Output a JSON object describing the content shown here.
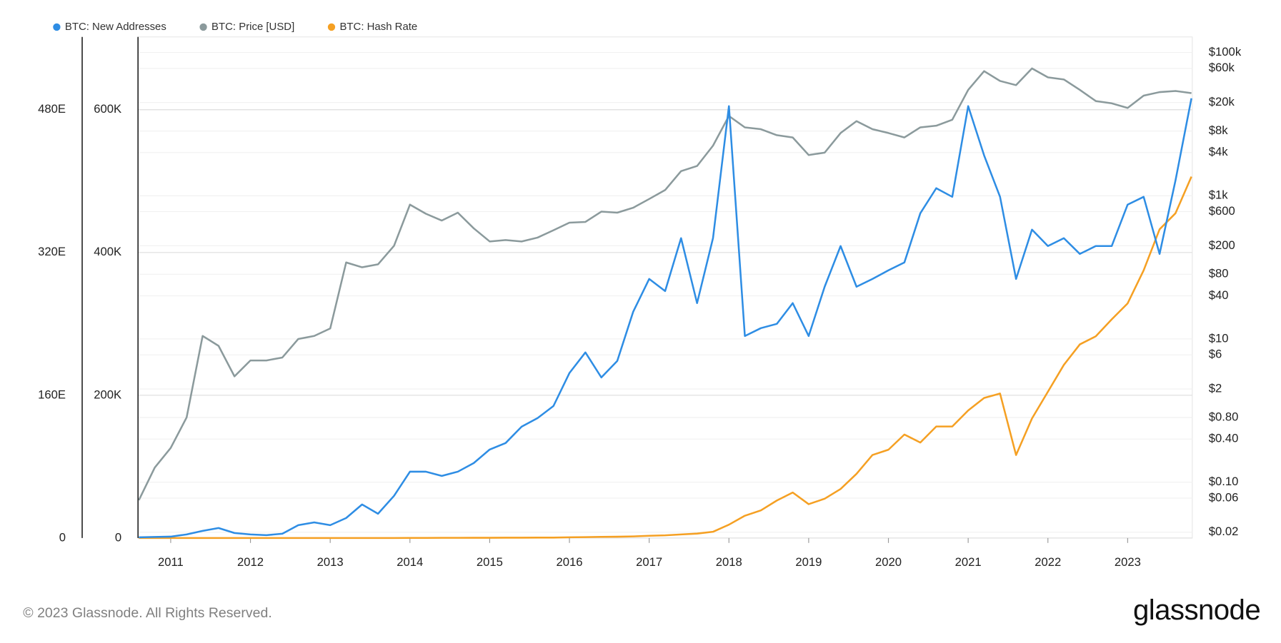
{
  "chart_data": {
    "type": "line",
    "x": [
      2010.6,
      2010.8,
      2011.0,
      2011.2,
      2011.4,
      2011.6,
      2011.8,
      2012.0,
      2012.2,
      2012.4,
      2012.6,
      2012.8,
      2013.0,
      2013.2,
      2013.4,
      2013.6,
      2013.8,
      2014.0,
      2014.2,
      2014.4,
      2014.6,
      2014.8,
      2015.0,
      2015.2,
      2015.4,
      2015.6,
      2015.8,
      2016.0,
      2016.2,
      2016.4,
      2016.6,
      2016.8,
      2017.0,
      2017.2,
      2017.4,
      2017.6,
      2017.8,
      2018.0,
      2018.2,
      2018.4,
      2018.6,
      2018.8,
      2019.0,
      2019.2,
      2019.4,
      2019.6,
      2019.8,
      2020.0,
      2020.2,
      2020.4,
      2020.6,
      2020.8,
      2021.0,
      2021.2,
      2021.4,
      2021.6,
      2021.8,
      2022.0,
      2022.2,
      2022.4,
      2022.6,
      2022.8,
      2023.0,
      2023.2,
      2023.4,
      2023.6,
      2023.8
    ],
    "xlim": [
      2010.59,
      2023.81
    ],
    "xticks": [
      2011,
      2012,
      2013,
      2014,
      2015,
      2016,
      2017,
      2018,
      2019,
      2020,
      2021,
      2022,
      2023
    ],
    "series": [
      {
        "name": "BTC: New Addresses",
        "color": "#2e8de4",
        "axis": "y",
        "values": [
          1000,
          1500,
          2000,
          5000,
          10000,
          14000,
          7000,
          5000,
          4000,
          6000,
          18000,
          22000,
          18000,
          28000,
          47000,
          34000,
          59000,
          93000,
          93000,
          87000,
          93000,
          105000,
          124000,
          133000,
          156000,
          168000,
          185000,
          231000,
          260000,
          225000,
          248000,
          317000,
          363000,
          346000,
          420000,
          329000,
          420000,
          605000,
          283000,
          294000,
          300000,
          329000,
          283000,
          352000,
          409000,
          352000,
          363000,
          375000,
          386000,
          455000,
          490000,
          478000,
          605000,
          536000,
          478000,
          363000,
          432000,
          409000,
          420000,
          398000,
          409000,
          409000,
          467000,
          478000,
          398000,
          501000,
          616000
        ]
      },
      {
        "name": "BTC: Price [USD]",
        "color": "#8b9a9c",
        "axis": "y2",
        "values": [
          0.056,
          0.16,
          0.3,
          0.8,
          11,
          8,
          3,
          5,
          5,
          5.5,
          10,
          11,
          14,
          117,
          100,
          110,
          200,
          750,
          560,
          450,
          580,
          350,
          230,
          240,
          230,
          260,
          330,
          420,
          430,
          600,
          580,
          680,
          900,
          1200,
          2200,
          2600,
          5000,
          13000,
          9000,
          8500,
          7000,
          6500,
          3700,
          4000,
          7500,
          11000,
          8500,
          7500,
          6500,
          9000,
          9500,
          11500,
          30000,
          55000,
          40000,
          35000,
          60000,
          45000,
          42000,
          30000,
          21000,
          19500,
          16800,
          25000,
          28000,
          29000,
          27000
        ]
      },
      {
        "name": "BTC: Hash Rate",
        "color": "#f5a023",
        "axis": "y3",
        "values": [
          0,
          0,
          0,
          0,
          0,
          0,
          0,
          0,
          0,
          0,
          0,
          0,
          0,
          0,
          0.01,
          0.02,
          0.03,
          0.06,
          0.1,
          0.15,
          0.2,
          0.25,
          0.3,
          0.35,
          0.4,
          0.45,
          0.5,
          0.8,
          1,
          1.3,
          1.5,
          1.8,
          2.5,
          3,
          4,
          5,
          7,
          15,
          25,
          31,
          42,
          51,
          38,
          44,
          55,
          72,
          93,
          99,
          116,
          107,
          125,
          125,
          143,
          157,
          162,
          93,
          134,
          164,
          194,
          217,
          226,
          245,
          263,
          300,
          346,
          364,
          405
        ]
      }
    ],
    "ylim": [
      0,
      702000
    ],
    "yticks": [
      0,
      {
        "value": 200000,
        "label": "200K"
      },
      {
        "value": 400000,
        "label": "400K"
      },
      {
        "value": 600000,
        "label": "600K"
      }
    ],
    "y2lim": [
      0.0166,
      165000
    ],
    "y2log": true,
    "y2ticks": [
      {
        "value": 100000,
        "label": "$100k"
      },
      {
        "value": 60000,
        "label": "$60k"
      },
      {
        "value": 20000,
        "label": "$20k"
      },
      {
        "value": 8000,
        "label": "$8k"
      },
      {
        "value": 4000,
        "label": "$4k"
      },
      {
        "value": 1000,
        "label": "$1k"
      },
      {
        "value": 600,
        "label": "$600"
      },
      {
        "value": 200,
        "label": "$200"
      },
      {
        "value": 80,
        "label": "$80"
      },
      {
        "value": 40,
        "label": "$40"
      },
      {
        "value": 10,
        "label": "$10"
      },
      {
        "value": 6,
        "label": "$6"
      },
      {
        "value": 2,
        "label": "$2"
      },
      {
        "value": 0.8,
        "label": "$0.80"
      },
      {
        "value": 0.4,
        "label": "$0.40"
      },
      {
        "value": 0.1,
        "label": "$0.10"
      },
      {
        "value": 0.06,
        "label": "$0.06"
      },
      {
        "value": 0.02,
        "label": "$0.02"
      }
    ],
    "y3lim": [
      0,
      561.6
    ],
    "y3ticks": [
      0,
      {
        "value": 160,
        "label": "160E"
      },
      {
        "value": 320,
        "label": "320E"
      },
      {
        "value": 480,
        "label": "480E"
      }
    ],
    "grid": true,
    "legend": "top-left"
  },
  "footer": {
    "copyright": "© 2023 Glassnode. All Rights Reserved.",
    "brand": "glassnode"
  }
}
